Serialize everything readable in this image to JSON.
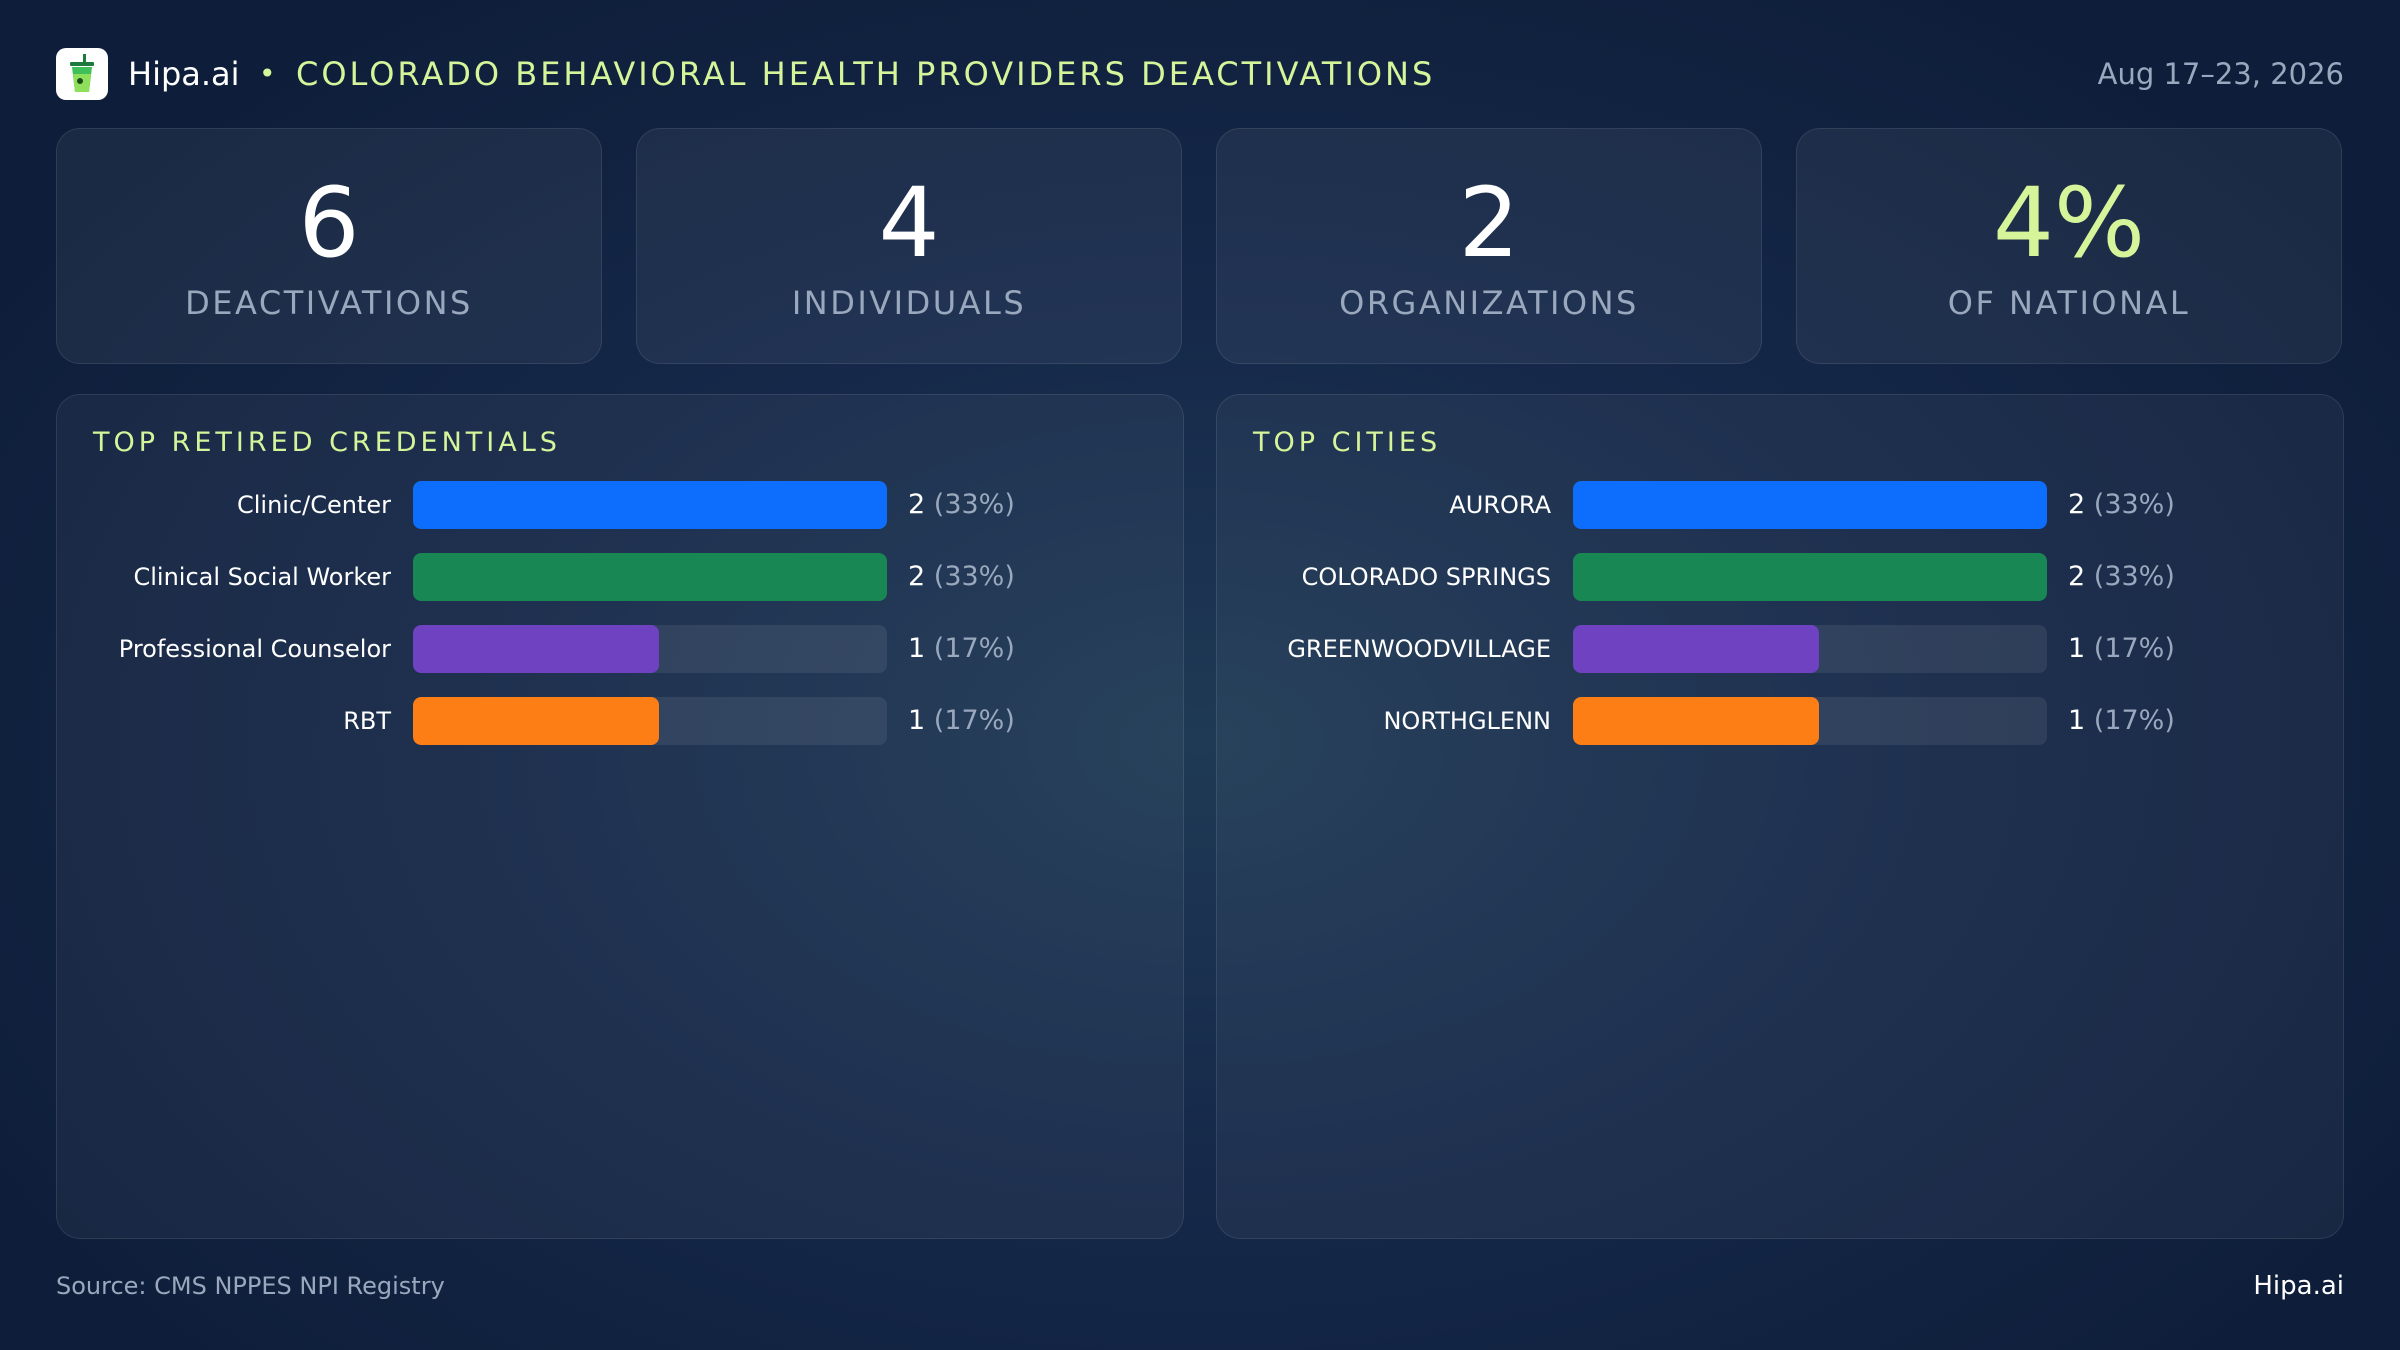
{
  "header": {
    "brand": "Hipa.ai",
    "title": "COLORADO BEHAVIORAL HEALTH PROVIDERS DEACTIVATIONS",
    "date": "Aug 17–23, 2026",
    "logo_icon": "drink-cup-icon"
  },
  "kpis": [
    {
      "value": "6",
      "label": "DEACTIVATIONS"
    },
    {
      "value": "4",
      "label": "INDIVIDUALS"
    },
    {
      "value": "2",
      "label": "ORGANIZATIONS"
    },
    {
      "value": "4%",
      "label": "OF NATIONAL"
    }
  ],
  "colors": {
    "accent": "#d6f59a",
    "bar1": "#0d6efd",
    "bar2": "#198754",
    "bar3": "#6f42c1",
    "bar4": "#fd7e14"
  },
  "chart_data": [
    {
      "type": "bar",
      "orientation": "horizontal",
      "title": "TOP RETIRED CREDENTIALS",
      "categories": [
        "Clinic/Center",
        "Clinical Social Worker",
        "Professional Counselor",
        "RBT"
      ],
      "values": [
        2,
        2,
        1,
        1
      ],
      "value_labels": [
        "2",
        "2",
        "1",
        "1"
      ],
      "pct_labels": [
        "(33%)",
        "(33%)",
        "(17%)",
        "(17%)"
      ],
      "xlim": [
        0,
        2
      ]
    },
    {
      "type": "bar",
      "orientation": "horizontal",
      "title": "TOP CITIES",
      "categories": [
        "AURORA",
        "COLORADO SPRINGS",
        "GREENWOODVILLAGE",
        "NORTHGLENN"
      ],
      "values": [
        2,
        2,
        1,
        1
      ],
      "value_labels": [
        "2",
        "2",
        "1",
        "1"
      ],
      "pct_labels": [
        "(33%)",
        "(33%)",
        "(17%)",
        "(17%)"
      ],
      "xlim": [
        0,
        2
      ]
    }
  ],
  "footer": {
    "source": "Source: CMS NPPES NPI Registry",
    "brand": "Hipa.ai"
  }
}
